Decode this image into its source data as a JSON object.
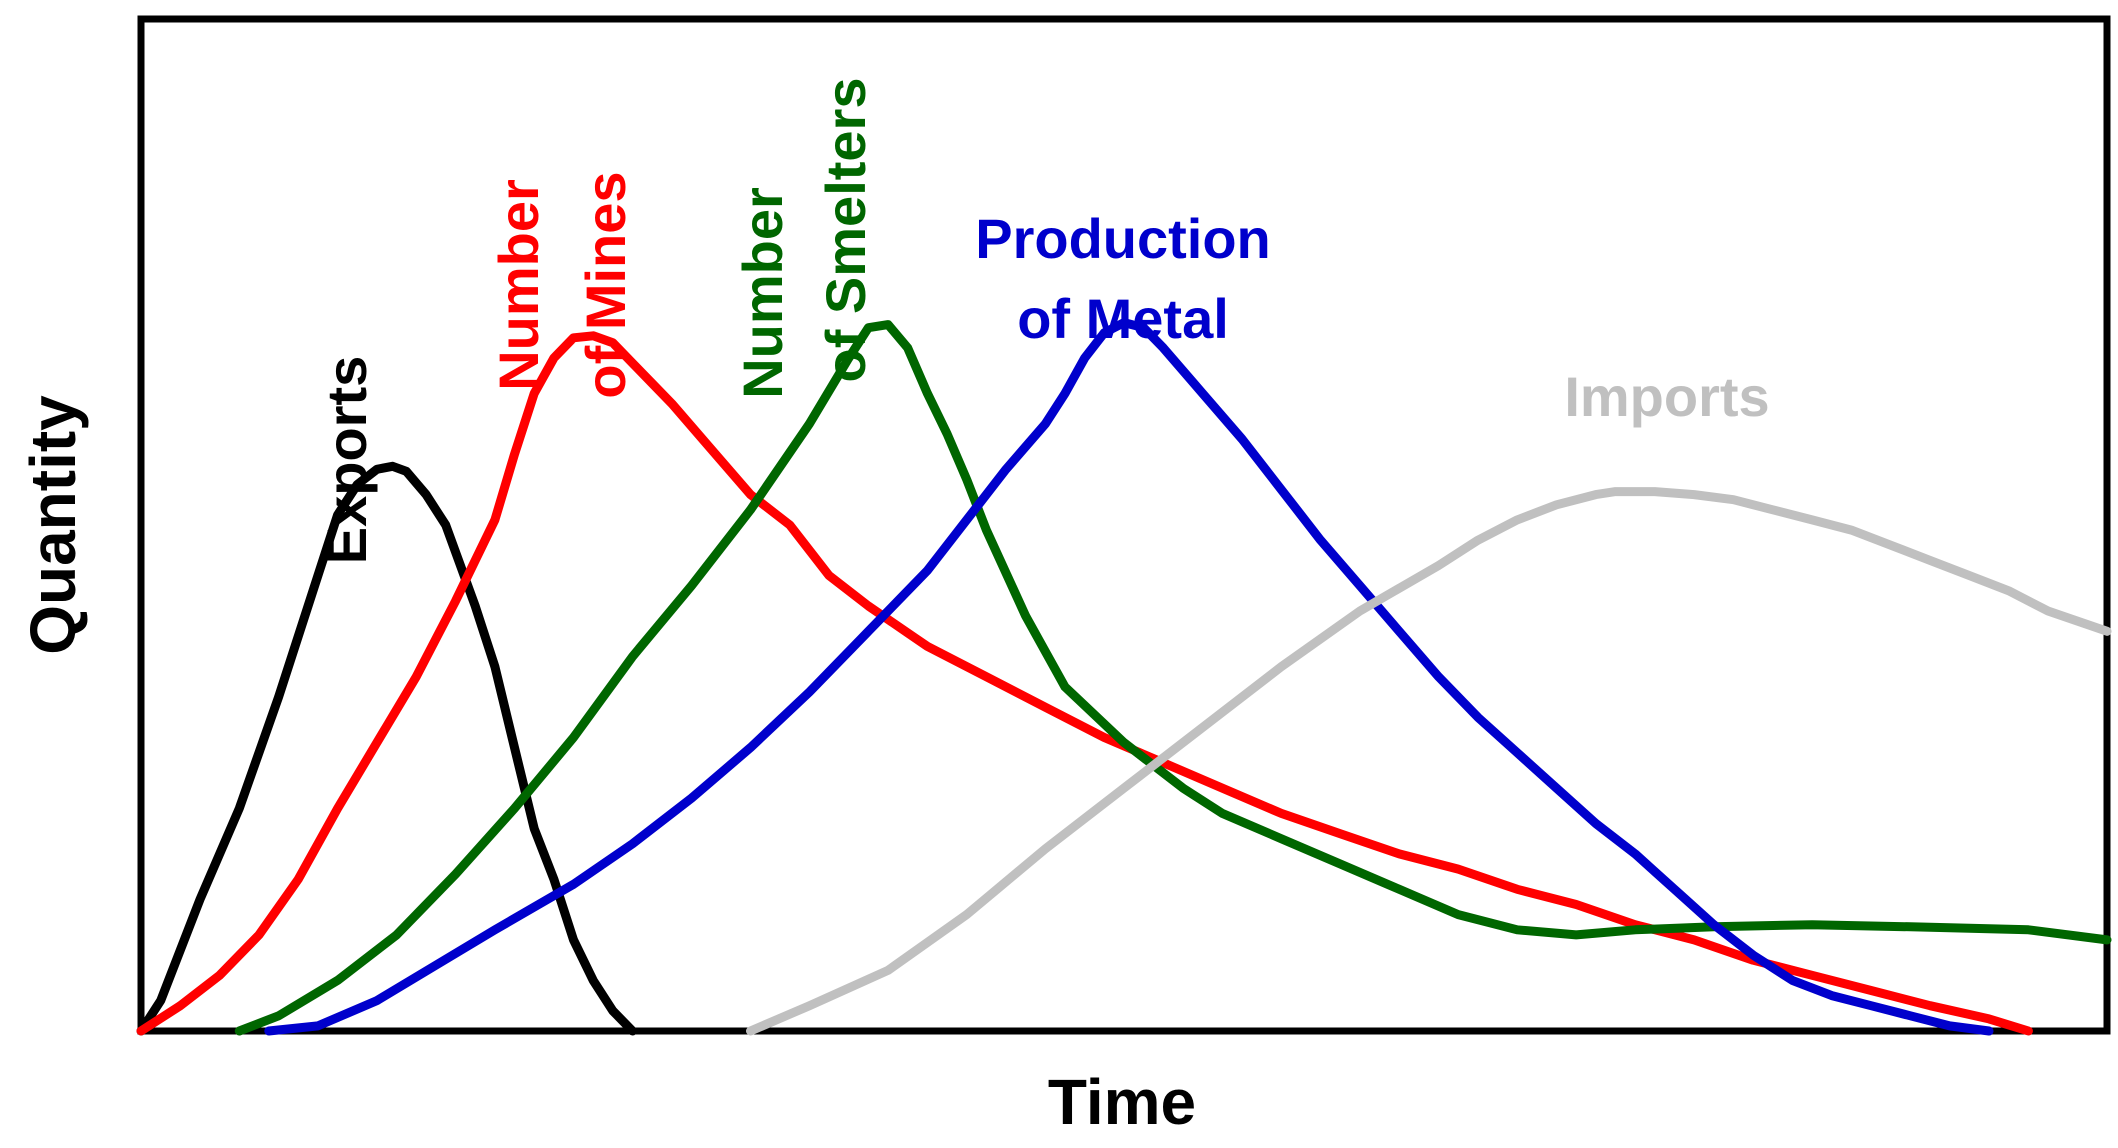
{
  "chart_data": {
    "type": "line",
    "title": "",
    "xlabel": "Time",
    "ylabel": "Quantity",
    "xlim": [
      0,
      100
    ],
    "ylim": [
      0,
      100
    ],
    "grid": false,
    "legend": "inline labels",
    "series": [
      {
        "key": "exports",
        "name": "Exports",
        "label_lines": [
          "Exports"
        ],
        "color": "#000000",
        "points": [
          [
            0,
            0
          ],
          [
            1,
            3
          ],
          [
            3,
            13
          ],
          [
            5,
            22
          ],
          [
            7,
            33
          ],
          [
            9,
            45
          ],
          [
            10,
            51
          ],
          [
            11,
            54
          ],
          [
            12,
            55.5
          ],
          [
            12.8,
            55.8
          ],
          [
            13.5,
            55.3
          ],
          [
            14.5,
            53
          ],
          [
            15.5,
            50
          ],
          [
            17,
            42
          ],
          [
            18,
            36
          ],
          [
            19,
            28
          ],
          [
            20,
            20
          ],
          [
            21,
            15
          ],
          [
            22,
            9
          ],
          [
            23,
            5
          ],
          [
            24,
            2
          ],
          [
            25,
            0
          ]
        ]
      },
      {
        "key": "mines",
        "name": "Number of Mines",
        "label_lines": [
          "Number",
          "of Mines"
        ],
        "color": "#ff0000",
        "points": [
          [
            0,
            0
          ],
          [
            2,
            2.5
          ],
          [
            4,
            5.5
          ],
          [
            6,
            9.5
          ],
          [
            8,
            15
          ],
          [
            10,
            22
          ],
          [
            12,
            28.5
          ],
          [
            14,
            35
          ],
          [
            16,
            42.5
          ],
          [
            18,
            50.5
          ],
          [
            19,
            57
          ],
          [
            20,
            63
          ],
          [
            21,
            66.5
          ],
          [
            22,
            68.5
          ],
          [
            23,
            68.7
          ],
          [
            24,
            68
          ],
          [
            25,
            66
          ],
          [
            27,
            62
          ],
          [
            29,
            57.5
          ],
          [
            31,
            53
          ],
          [
            33,
            50
          ],
          [
            35,
            45
          ],
          [
            37,
            42
          ],
          [
            40,
            38
          ],
          [
            43,
            35
          ],
          [
            46,
            32
          ],
          [
            49,
            29
          ],
          [
            52,
            26.5
          ],
          [
            55,
            24
          ],
          [
            58,
            21.5
          ],
          [
            61,
            19.5
          ],
          [
            64,
            17.5
          ],
          [
            67,
            16
          ],
          [
            70,
            14
          ],
          [
            73,
            12.5
          ],
          [
            76,
            10.5
          ],
          [
            79,
            9
          ],
          [
            82,
            7
          ],
          [
            85,
            5.5
          ],
          [
            88,
            4
          ],
          [
            91,
            2.5
          ],
          [
            94,
            1.2
          ],
          [
            96,
            0
          ]
        ]
      },
      {
        "key": "smelters",
        "name": "Number of Smelters",
        "label_lines": [
          "Number",
          "of Smelters"
        ],
        "color": "#006600",
        "points": [
          [
            5,
            0
          ],
          [
            7,
            1.5
          ],
          [
            10,
            5
          ],
          [
            13,
            9.5
          ],
          [
            16,
            15.5
          ],
          [
            19,
            22
          ],
          [
            22,
            29
          ],
          [
            25,
            37
          ],
          [
            28,
            44
          ],
          [
            31,
            51.5
          ],
          [
            34,
            60
          ],
          [
            36,
            66.5
          ],
          [
            37,
            69.5
          ],
          [
            38,
            69.8
          ],
          [
            39,
            67.5
          ],
          [
            40,
            63
          ],
          [
            41,
            59
          ],
          [
            42,
            54.5
          ],
          [
            43,
            49.5
          ],
          [
            45,
            41
          ],
          [
            47,
            34
          ],
          [
            50,
            28.5
          ],
          [
            53,
            24
          ],
          [
            55,
            21.5
          ],
          [
            58,
            19
          ],
          [
            61,
            16.5
          ],
          [
            64,
            14
          ],
          [
            67,
            11.5
          ],
          [
            70,
            10
          ],
          [
            73,
            9.5
          ],
          [
            76,
            10
          ],
          [
            80,
            10.3
          ],
          [
            85,
            10.5
          ],
          [
            90,
            10.3
          ],
          [
            96,
            10
          ],
          [
            100,
            9
          ]
        ]
      },
      {
        "key": "metal",
        "name": "Production of Metal",
        "label_lines": [
          "Production",
          "of Metal"
        ],
        "color": "#0000cc",
        "points": [
          [
            6.5,
            0
          ],
          [
            9,
            0.5
          ],
          [
            12,
            3
          ],
          [
            15,
            6.5
          ],
          [
            18,
            10
          ],
          [
            22,
            14.5
          ],
          [
            25,
            18.5
          ],
          [
            28,
            23
          ],
          [
            31,
            28
          ],
          [
            34,
            33.5
          ],
          [
            37,
            39.5
          ],
          [
            40,
            45.5
          ],
          [
            42,
            50.5
          ],
          [
            44,
            55.5
          ],
          [
            46,
            60
          ],
          [
            47,
            63
          ],
          [
            48,
            66.5
          ],
          [
            49,
            69
          ],
          [
            50,
            70
          ],
          [
            51,
            69.5
          ],
          [
            52,
            67.5
          ],
          [
            54,
            63
          ],
          [
            56,
            58.5
          ],
          [
            58,
            53.5
          ],
          [
            60,
            48.5
          ],
          [
            62,
            44
          ],
          [
            64,
            39.5
          ],
          [
            66,
            35
          ],
          [
            68,
            31
          ],
          [
            70,
            27.5
          ],
          [
            72,
            24
          ],
          [
            74,
            20.5
          ],
          [
            76,
            17.5
          ],
          [
            78,
            14
          ],
          [
            80,
            10.5
          ],
          [
            82,
            7.5
          ],
          [
            84,
            5
          ],
          [
            86,
            3.5
          ],
          [
            88,
            2.5
          ],
          [
            90,
            1.5
          ],
          [
            92,
            0.5
          ],
          [
            94,
            0
          ]
        ]
      },
      {
        "key": "imports",
        "name": "Imports",
        "label_lines": [
          "Imports"
        ],
        "color": "#c0c0c0",
        "points": [
          [
            31,
            0
          ],
          [
            34,
            2.5
          ],
          [
            38,
            6
          ],
          [
            42,
            11.5
          ],
          [
            46,
            18
          ],
          [
            50,
            24
          ],
          [
            54,
            30
          ],
          [
            58,
            36
          ],
          [
            62,
            41.5
          ],
          [
            66,
            46
          ],
          [
            68,
            48.5
          ],
          [
            70,
            50.5
          ],
          [
            72,
            52
          ],
          [
            74,
            53
          ],
          [
            75,
            53.3
          ],
          [
            77,
            53.3
          ],
          [
            79,
            53
          ],
          [
            81,
            52.5
          ],
          [
            83,
            51.5
          ],
          [
            85,
            50.5
          ],
          [
            87,
            49.5
          ],
          [
            89,
            48
          ],
          [
            91,
            46.5
          ],
          [
            93,
            45
          ],
          [
            95,
            43.5
          ],
          [
            97,
            41.5
          ],
          [
            100,
            39.5
          ]
        ]
      }
    ]
  }
}
